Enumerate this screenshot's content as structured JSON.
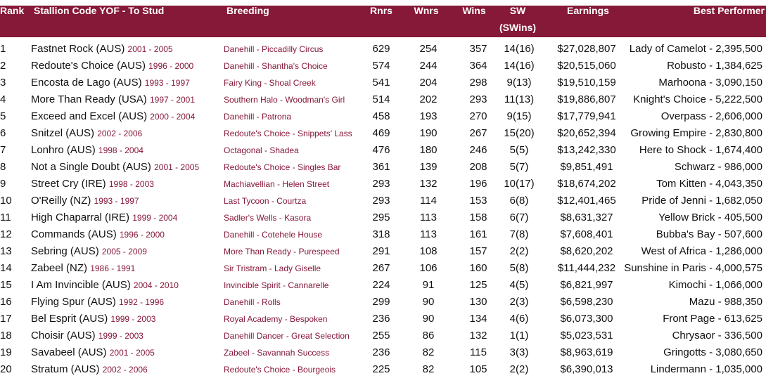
{
  "colors": {
    "header_bg": "#861838",
    "accent_text": "#861838"
  },
  "headers": {
    "rank": "Rank",
    "stallion": "Stallion Code YOF - To Stud",
    "breeding": "Breeding",
    "rnrs": "Rnrs",
    "wnrs": "Wnrs",
    "wins": "Wins",
    "sw": "SW",
    "sw2": "(SWins)",
    "earnings": "Earnings",
    "best": "Best Performer"
  },
  "rows": [
    {
      "rank": "1",
      "name": "Fastnet Rock (AUS)",
      "years": "2001 - 2005",
      "breeding": "Danehill - Piccadilly Circus",
      "rnrs": "629",
      "wnrs": "254",
      "wins": "357",
      "sw": "14(16)",
      "earnings": "$27,028,807",
      "best": "Lady of Camelot - 2,395,500"
    },
    {
      "rank": "2",
      "name": "Redoute's Choice (AUS)",
      "years": "1996 - 2000",
      "breeding": "Danehill - Shantha's Choice",
      "rnrs": "574",
      "wnrs": "244",
      "wins": "364",
      "sw": "14(16)",
      "earnings": "$20,515,060",
      "best": "Robusto - 1,384,625"
    },
    {
      "rank": "3",
      "name": "Encosta de Lago (AUS)",
      "years": "1993 - 1997",
      "breeding": "Fairy King - Shoal Creek",
      "rnrs": "541",
      "wnrs": "204",
      "wins": "298",
      "sw": "9(13)",
      "earnings": "$19,510,159",
      "best": "Marhoona - 3,090,150"
    },
    {
      "rank": "4",
      "name": "More Than Ready (USA)",
      "years": "1997 - 2001",
      "breeding": "Southern Halo - Woodman's Girl",
      "rnrs": "514",
      "wnrs": "202",
      "wins": "293",
      "sw": "11(13)",
      "earnings": "$19,886,807",
      "best": "Knight's Choice - 5,222,500"
    },
    {
      "rank": "5",
      "name": "Exceed and Excel (AUS)",
      "years": "2000 - 2004",
      "breeding": "Danehill - Patrona",
      "rnrs": "458",
      "wnrs": "193",
      "wins": "270",
      "sw": "9(15)",
      "earnings": "$17,779,941",
      "best": "Overpass - 2,606,000"
    },
    {
      "rank": "6",
      "name": "Snitzel (AUS)",
      "years": "2002 - 2006",
      "breeding": "Redoute's Choice - Snippets' Lass",
      "rnrs": "469",
      "wnrs": "190",
      "wins": "267",
      "sw": "15(20)",
      "earnings": "$20,652,394",
      "best": "Growing Empire - 2,830,800"
    },
    {
      "rank": "7",
      "name": "Lonhro (AUS)",
      "years": "1998 - 2004",
      "breeding": "Octagonal - Shadea",
      "rnrs": "476",
      "wnrs": "180",
      "wins": "246",
      "sw": "5(5)",
      "earnings": "$13,242,330",
      "best": "Here to Shock - 1,674,400"
    },
    {
      "rank": "8",
      "name": "Not a Single Doubt (AUS)",
      "years": "2001 - 2005",
      "breeding": "Redoute's Choice - Singles Bar",
      "rnrs": "361",
      "wnrs": "139",
      "wins": "208",
      "sw": "5(7)",
      "earnings": "$9,851,491",
      "best": "Schwarz - 986,000"
    },
    {
      "rank": "9",
      "name": "Street Cry (IRE)",
      "years": "1998 - 2003",
      "breeding": "Machiavellian - Helen Street",
      "rnrs": "293",
      "wnrs": "132",
      "wins": "196",
      "sw": "10(17)",
      "earnings": "$18,674,202",
      "best": "Tom Kitten - 4,043,350"
    },
    {
      "rank": "10",
      "name": "O'Reilly (NZ)",
      "years": "1993 - 1997",
      "breeding": "Last Tycoon - Courtza",
      "rnrs": "293",
      "wnrs": "114",
      "wins": "153",
      "sw": "6(8)",
      "earnings": "$12,401,465",
      "best": "Pride of Jenni - 1,682,050"
    },
    {
      "rank": "11",
      "name": "High Chaparral (IRE)",
      "years": "1999 - 2004",
      "breeding": "Sadler's Wells - Kasora",
      "rnrs": "295",
      "wnrs": "113",
      "wins": "158",
      "sw": "6(7)",
      "earnings": "$8,631,327",
      "best": "Yellow Brick - 405,500"
    },
    {
      "rank": "12",
      "name": "Commands (AUS)",
      "years": "1996 - 2000",
      "breeding": "Danehill - Cotehele House",
      "rnrs": "318",
      "wnrs": "113",
      "wins": "161",
      "sw": "7(8)",
      "earnings": "$7,608,401",
      "best": "Bubba's Bay - 507,600"
    },
    {
      "rank": "13",
      "name": "Sebring (AUS)",
      "years": "2005 - 2009",
      "breeding": "More Than Ready - Purespeed",
      "rnrs": "291",
      "wnrs": "108",
      "wins": "157",
      "sw": "2(2)",
      "earnings": "$8,620,202",
      "best": "West of Africa - 1,286,000"
    },
    {
      "rank": "14",
      "name": "Zabeel (NZ)",
      "years": "1986 - 1991",
      "breeding": "Sir Tristram - Lady Giselle",
      "rnrs": "267",
      "wnrs": "106",
      "wins": "160",
      "sw": "5(8)",
      "earnings": "$11,444,232",
      "best": "Sunshine in Paris - 4,000,575"
    },
    {
      "rank": "15",
      "name": "I Am Invincible (AUS)",
      "years": "2004 - 2010",
      "breeding": "Invincible Spirit - Cannarelle",
      "rnrs": "224",
      "wnrs": "91",
      "wins": "125",
      "sw": "4(5)",
      "earnings": "$6,821,997",
      "best": "Kimochi - 1,066,000"
    },
    {
      "rank": "16",
      "name": "Flying Spur (AUS)",
      "years": "1992 - 1996",
      "breeding": "Danehill - Rolls",
      "rnrs": "299",
      "wnrs": "90",
      "wins": "130",
      "sw": "2(3)",
      "earnings": "$6,598,230",
      "best": "Mazu - 988,350"
    },
    {
      "rank": "17",
      "name": "Bel Esprit (AUS)",
      "years": "1999 - 2003",
      "breeding": "Royal Academy - Bespoken",
      "rnrs": "236",
      "wnrs": "90",
      "wins": "134",
      "sw": "4(6)",
      "earnings": "$6,073,300",
      "best": "Front Page - 613,625"
    },
    {
      "rank": "18",
      "name": "Choisir (AUS)",
      "years": "1999 - 2003",
      "breeding": "Danehill Dancer - Great Selection",
      "rnrs": "255",
      "wnrs": "86",
      "wins": "132",
      "sw": "1(1)",
      "earnings": "$5,023,531",
      "best": "Chrysaor - 336,500"
    },
    {
      "rank": "19",
      "name": "Savabeel (AUS)",
      "years": "2001 - 2005",
      "breeding": "Zabeel - Savannah Success",
      "rnrs": "236",
      "wnrs": "82",
      "wins": "115",
      "sw": "3(3)",
      "earnings": "$8,963,619",
      "best": "Gringotts - 3,080,650"
    },
    {
      "rank": "20",
      "name": "Stratum (AUS)",
      "years": "2002 - 2006",
      "breeding": "Redoute's Choice - Bourgeois",
      "rnrs": "225",
      "wnrs": "82",
      "wins": "105",
      "sw": "2(2)",
      "earnings": "$6,390,013",
      "best": "Lindermann - 1,035,000"
    }
  ]
}
